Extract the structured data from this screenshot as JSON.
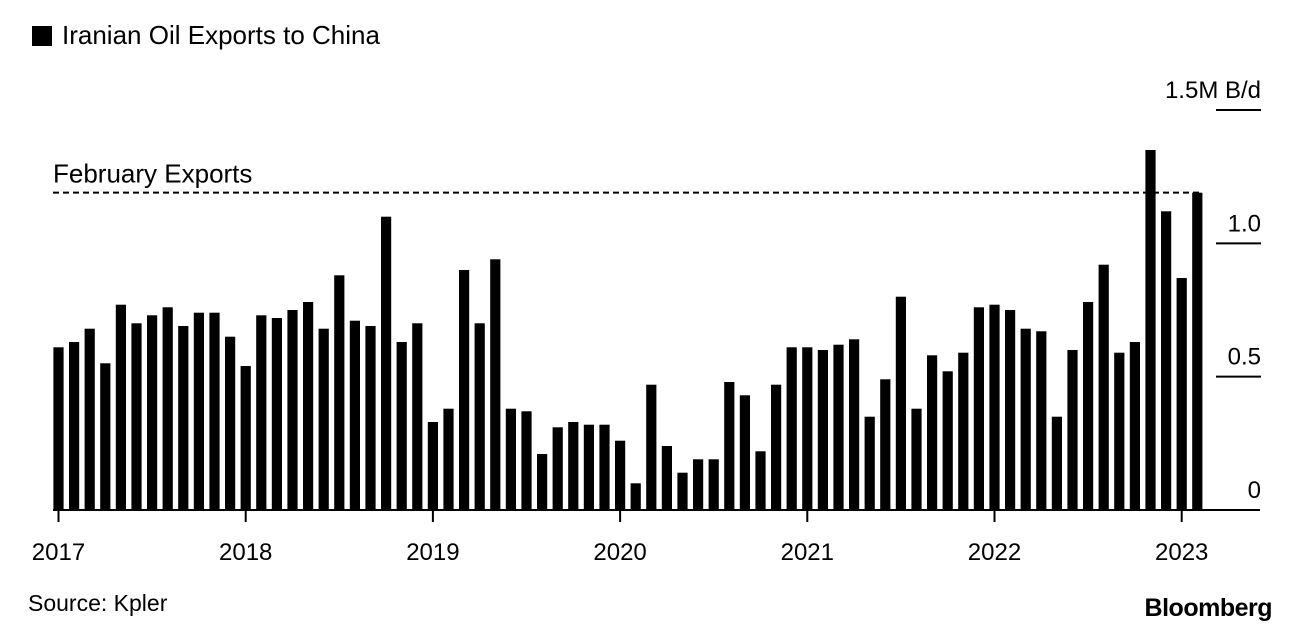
{
  "chart_data": {
    "type": "bar",
    "title": "",
    "legend": [
      {
        "label": "Iranian Oil Exports to China",
        "color": "#000000"
      }
    ],
    "unit_label": "1.5M B/d",
    "ylim": [
      0,
      1.5
    ],
    "ytick_labels": [
      {
        "value": 0,
        "label": "0"
      },
      {
        "value": 0.5,
        "label": "0.5"
      },
      {
        "value": 1.0,
        "label": "1.0"
      },
      {
        "value": 1.5,
        "label": "1.5M B/d"
      }
    ],
    "xtick_labels": [
      "2017",
      "2018",
      "2019",
      "2020",
      "2021",
      "2022",
      "2023"
    ],
    "reference_line": {
      "label": "February Exports",
      "value": 1.19,
      "style": "dashed"
    },
    "series": [
      {
        "color": "#000000",
        "x": [
          "2017-01",
          "2017-02",
          "2017-03",
          "2017-04",
          "2017-05",
          "2017-06",
          "2017-07",
          "2017-08",
          "2017-09",
          "2017-10",
          "2017-11",
          "2017-12",
          "2018-01",
          "2018-02",
          "2018-03",
          "2018-04",
          "2018-05",
          "2018-06",
          "2018-07",
          "2018-08",
          "2018-09",
          "2018-10",
          "2018-11",
          "2018-12",
          "2019-01",
          "2019-02",
          "2019-03",
          "2019-04",
          "2019-05",
          "2019-06",
          "2019-07",
          "2019-08",
          "2019-09",
          "2019-10",
          "2019-11",
          "2019-12",
          "2020-01",
          "2020-02",
          "2020-03",
          "2020-04",
          "2020-05",
          "2020-06",
          "2020-07",
          "2020-08",
          "2020-09",
          "2020-10",
          "2020-11",
          "2020-12",
          "2021-01",
          "2021-02",
          "2021-03",
          "2021-04",
          "2021-05",
          "2021-06",
          "2021-07",
          "2021-08",
          "2021-09",
          "2021-10",
          "2021-11",
          "2021-12",
          "2022-01",
          "2022-02",
          "2022-03",
          "2022-04",
          "2022-05",
          "2022-06",
          "2022-07",
          "2022-08",
          "2022-09",
          "2022-10",
          "2022-11",
          "2022-12",
          "2023-01",
          "2023-02"
        ],
        "values": [
          0.61,
          0.63,
          0.68,
          0.55,
          0.77,
          0.7,
          0.73,
          0.76,
          0.69,
          0.74,
          0.74,
          0.65,
          0.54,
          0.73,
          0.72,
          0.75,
          0.78,
          0.68,
          0.88,
          0.71,
          0.69,
          1.1,
          0.63,
          0.7,
          0.33,
          0.38,
          0.9,
          0.7,
          0.94,
          0.38,
          0.37,
          0.21,
          0.31,
          0.33,
          0.32,
          0.32,
          0.26,
          0.1,
          0.47,
          0.24,
          0.14,
          0.19,
          0.19,
          0.48,
          0.43,
          0.22,
          0.47,
          0.61,
          0.61,
          0.6,
          0.62,
          0.64,
          0.35,
          0.49,
          0.8,
          0.38,
          0.58,
          0.52,
          0.59,
          0.76,
          0.77,
          0.75,
          0.68,
          0.67,
          0.35,
          0.6,
          0.78,
          0.92,
          0.59,
          0.63,
          1.35,
          1.12,
          0.87,
          1.19
        ]
      }
    ]
  },
  "footer": {
    "source": "Source: Kpler",
    "brand": "Bloomberg"
  }
}
